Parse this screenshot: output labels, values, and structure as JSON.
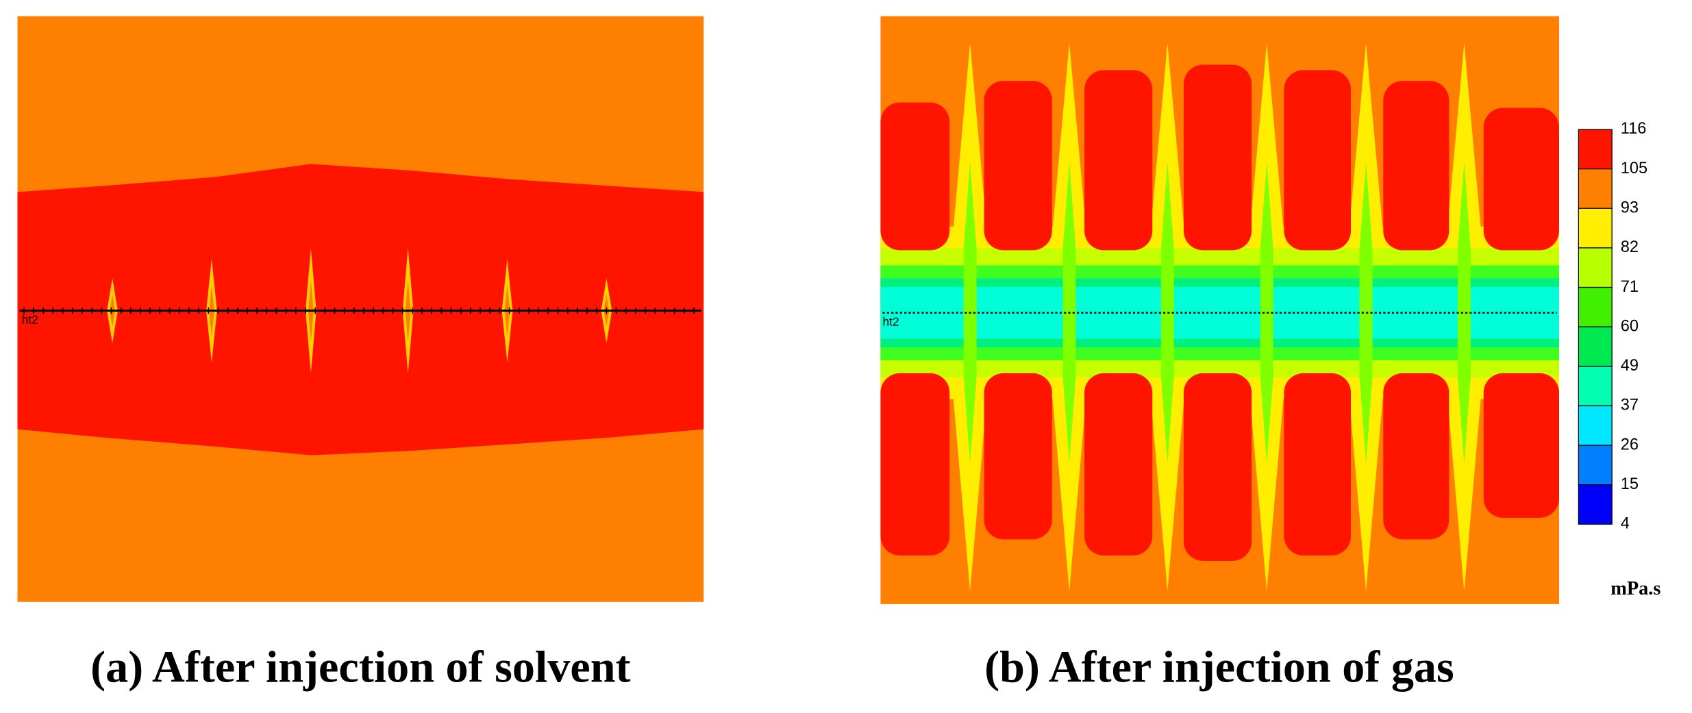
{
  "panels": [
    {
      "caption": "(a) After injection of solvent",
      "well_label": "ht2"
    },
    {
      "caption": "(b) After injection of gas",
      "well_label": "ht2"
    }
  ],
  "colorbar": {
    "ticks": [
      "116",
      "105",
      "93",
      "82",
      "71",
      "60",
      "49",
      "37",
      "26",
      "15",
      "4"
    ],
    "unit": "mPa.s"
  }
}
